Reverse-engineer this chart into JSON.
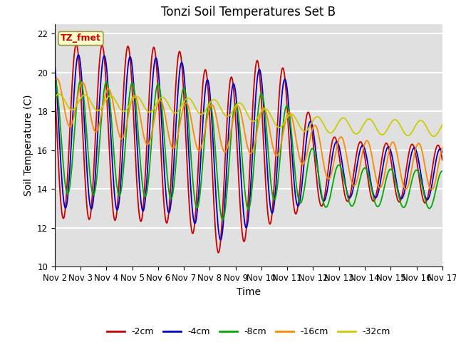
{
  "title": "Tonzi Soil Temperatures Set B",
  "xlabel": "Time",
  "ylabel": "Soil Temperature (C)",
  "annotation": "TZ_fmet",
  "ylim": [
    10,
    22.5
  ],
  "xlim": [
    0,
    360
  ],
  "series_colors": {
    "-2cm": "#cc0000",
    "-4cm": "#0000cc",
    "-8cm": "#00aa00",
    "-16cm": "#ff8800",
    "-32cm": "#cccc00"
  },
  "xtick_labels": [
    "Nov 2",
    "Nov 3",
    "Nov 4",
    "Nov 5",
    "Nov 6",
    "Nov 7",
    "Nov 8",
    "Nov 9",
    "Nov 10",
    "Nov 11",
    "Nov 12",
    "Nov 13",
    "Nov 14",
    "Nov 15",
    "Nov 16",
    "Nov 17"
  ],
  "ytick_labels": [
    "10",
    "12",
    "14",
    "16",
    "18",
    "20",
    "22"
  ],
  "yticks": [
    10,
    12,
    14,
    16,
    18,
    20,
    22
  ],
  "background_color": "#e0e0e0",
  "grid_color": "#ffffff",
  "title_fontsize": 12,
  "label_fontsize": 10,
  "tick_fontsize": 8.5,
  "legend_fontsize": 9,
  "linewidth": 1.3
}
